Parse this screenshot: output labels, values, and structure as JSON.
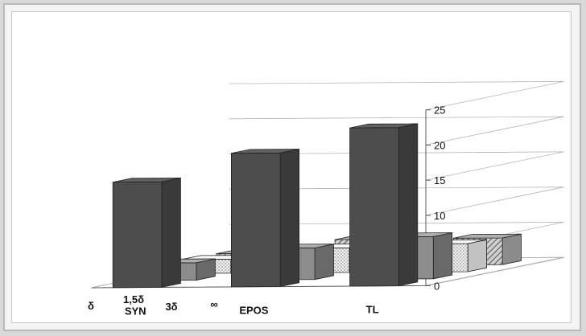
{
  "chart_data": {
    "type": "bar",
    "title": "",
    "xlabel": "",
    "ylabel": "",
    "ylim": [
      0,
      25
    ],
    "yticks": [
      0,
      5,
      10,
      15,
      20,
      25
    ],
    "grid": true,
    "legend": "none",
    "categories": [
      "SYN",
      "EPOS",
      "TL"
    ],
    "series": [
      {
        "name": "δ",
        "values": [
          15,
          19,
          22.5
        ],
        "color": "#4d4d4d",
        "pattern": "solid"
      },
      {
        "name": "1,5δ",
        "values": [
          2.5,
          4.5,
          6
        ],
        "color": "#8c8c8c",
        "pattern": "solid"
      },
      {
        "name": "3δ",
        "values": [
          2,
          3.5,
          4
        ],
        "color": "#ececec",
        "pattern": "dots"
      },
      {
        "name": "∞",
        "values": [
          1.8,
          3.7,
          3.8
        ],
        "color": "#a9a9a9",
        "pattern": "hatch"
      }
    ]
  }
}
